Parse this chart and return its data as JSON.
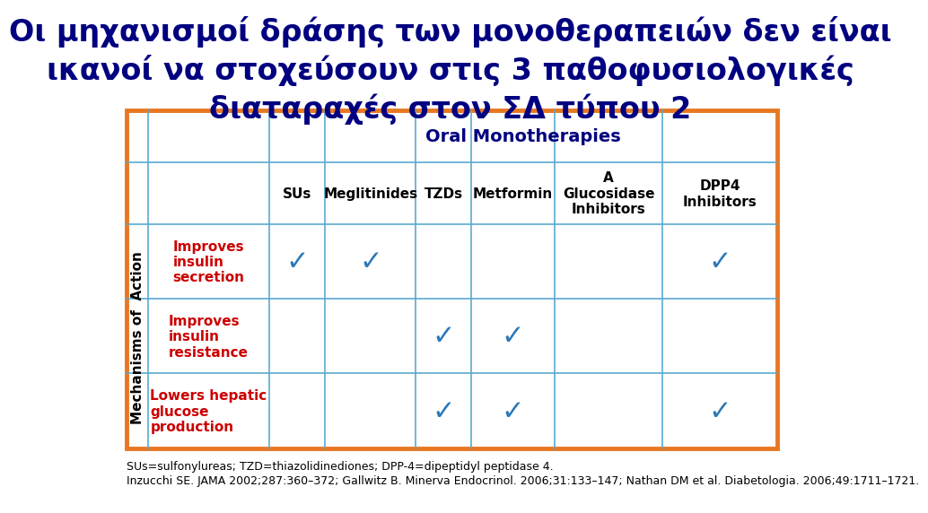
{
  "title_line1": "Οι μηχανισμοί δράσης των μονοθεραπειών δεν είναι",
  "title_line2": "ικανοί να στοχεύσουν στις 3 παθοφυσιολογικές",
  "title_line3": "διαταραχές στον ΣΔ τύπου 2",
  "title_color": "#000080",
  "title_fontsize": 24,
  "oral_monotherapies_label": "Oral Monotherapies",
  "oral_monotherapies_color": "#000080",
  "col_headers": [
    "SUs",
    "Meglitinides",
    "TZDs",
    "Metformin",
    "A\nGlucosidase\nInhibitors",
    "DPP4\nInhibitors"
  ],
  "row_labels": [
    "Improves\ninsulin\nsecretiοn",
    "Improves\ninsulin\nresistance",
    "Lowers hepatic\nglucose\nproduction"
  ],
  "row_label_color": "#cc0000",
  "mechanisms_label": "Mechanisms of  Action",
  "checkmarks": [
    [
      true,
      true,
      false,
      false,
      false,
      true
    ],
    [
      false,
      false,
      true,
      true,
      false,
      false
    ],
    [
      false,
      false,
      true,
      true,
      false,
      true
    ]
  ],
  "checkmark_color": "#2b78b8",
  "outer_border_color": "#e87722",
  "inner_border_color": "#5aaad0",
  "background_color": "#ffffff",
  "footnote1": "SUs=sulfonylureas; TZD=thiazolidinediones; DPP-4=dipeptidyl peptidase 4.",
  "footnote2": "Inzucchi SE. JAMA 2002;287:360–372; Gallwitz B. Minerva Endocrinol. 2006;31:133–147; Nathan DM et al. Diabetologia. 2006;49:1711–1721.",
  "footnote_fontsize": 9,
  "col_header_fontsize": 11,
  "row_label_fontsize": 11,
  "mechanisms_fontsize": 11,
  "checkmark_fontsize": 22,
  "oral_font_size": 14
}
